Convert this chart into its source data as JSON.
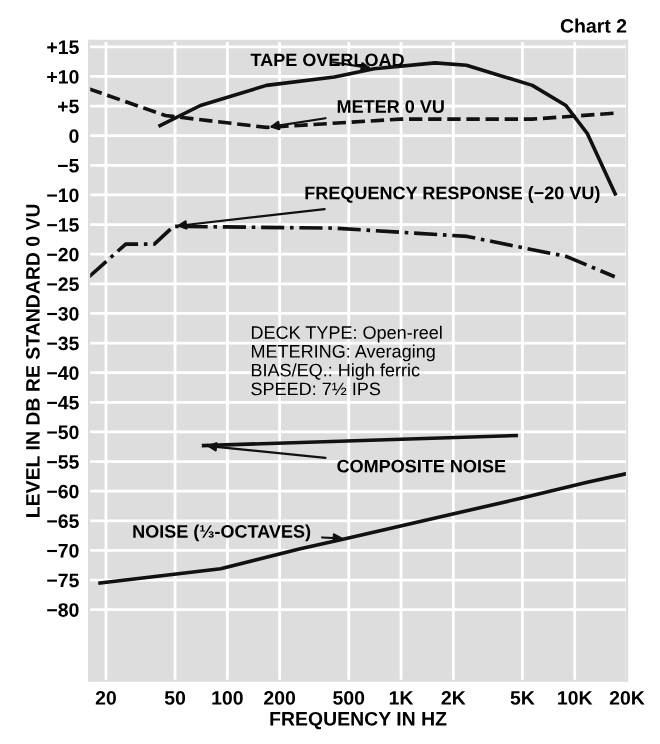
{
  "chart_data": {
    "type": "line",
    "title": "Chart 2",
    "xlabel": "FREQUENCY IN HZ",
    "ylabel": "LEVEL IN DB RE STANDARD 0 VU",
    "log": "x",
    "xlim": [
      16,
      20000
    ],
    "ylim": [
      -92,
      16
    ],
    "xticks": [
      20,
      50,
      100,
      200,
      500,
      {
        "value": 1000,
        "label": "1K"
      },
      {
        "value": 2000,
        "label": "2K"
      },
      {
        "value": 5000,
        "label": "5K"
      },
      {
        "value": 10000,
        "label": "10K"
      },
      {
        "value": 20000,
        "label": "20K"
      }
    ],
    "yticks": [
      {
        "value": 15,
        "label": "+15"
      },
      {
        "value": 10,
        "label": "+10"
      },
      {
        "value": 5,
        "label": "+5"
      },
      0,
      {
        "value": -5,
        "label": "−5"
      },
      {
        "value": -10,
        "label": "−10"
      },
      {
        "value": -15,
        "label": "−15"
      },
      {
        "value": -20,
        "label": "−20"
      },
      {
        "value": -25,
        "label": "−25"
      },
      {
        "value": -30,
        "label": "−30"
      },
      {
        "value": -35,
        "label": "−35"
      },
      {
        "value": -40,
        "label": "−40"
      },
      {
        "value": -45,
        "label": "−45"
      },
      {
        "value": -50,
        "label": "−50"
      },
      {
        "value": -55,
        "label": "−55"
      },
      {
        "value": -60,
        "label": "−60"
      },
      {
        "value": -65,
        "label": "−65"
      },
      {
        "value": -70,
        "label": "−70"
      },
      {
        "value": -75,
        "label": "−75"
      },
      {
        "value": -80,
        "label": "−80"
      }
    ],
    "grid": true,
    "marker": "none",
    "series": [
      {
        "name": "TAPE OVERLOAD",
        "color": "#111111",
        "line_style": "solid",
        "x": [
          41,
          70,
          168,
          413,
          700,
          1570,
          2380,
          5700,
          8900,
          11800,
          17100
        ],
        "values": [
          1.7,
          5.1,
          8.5,
          9.9,
          11.3,
          12.3,
          11.9,
          8.5,
          5.1,
          0.4,
          -9.8
        ]
      },
      {
        "name": "METER 0 VU",
        "color": "#111111",
        "line_style": "dashed",
        "x": [
          16,
          44,
          168,
          990,
          5700,
          17000
        ],
        "values": [
          7.9,
          3.4,
          1.4,
          2.8,
          2.8,
          3.8
        ]
      },
      {
        "name": "FREQUENCY RESPONSE (−20 VU)",
        "color": "#111111",
        "line_style": "dashdot",
        "x": [
          16,
          26,
          38,
          49,
          413,
          2400,
          9000,
          17000
        ],
        "values": [
          -23.8,
          -18.3,
          -18.3,
          -15.3,
          -15.6,
          -17,
          -20.4,
          -23.8
        ]
      },
      {
        "name": "COMPOSITE NOISE",
        "color": "#111111",
        "line_style": "solid",
        "x": [
          73,
          4600
        ],
        "values": [
          -52.3,
          -50.6
        ]
      },
      {
        "name": "NOISE (⅓-OCTAVES)",
        "color": "#111111",
        "line_style": "solid",
        "x": [
          18.5,
          91.5,
          263,
          484,
          4900,
          11800,
          19500
        ],
        "values": [
          -75.5,
          -73.1,
          -69.7,
          -68,
          -61.2,
          -58.5,
          -57.1
        ]
      }
    ],
    "annotations": [
      "DECK TYPE: Open-reel",
      "METERING: Averaging",
      "BIAS/EQ.: High ferric",
      "SPEED: 7½ IPS"
    ]
  }
}
